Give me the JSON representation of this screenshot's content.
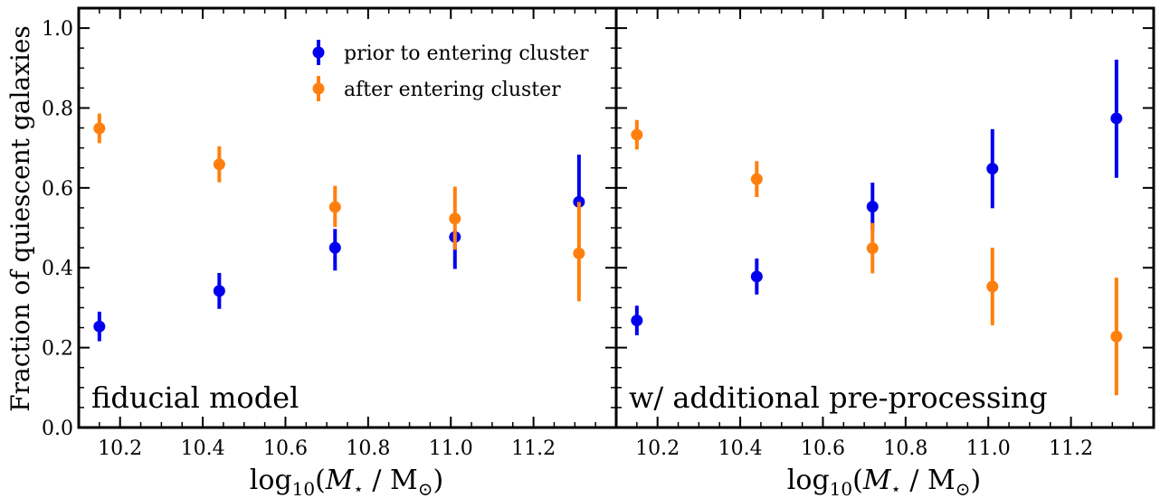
{
  "chart_data": {
    "type": "scatter",
    "ylabel": "Fraction of quiescent galaxies",
    "xlabel_prefix": "log",
    "xlabel_sub": "10",
    "xlabel_paren_open": "(",
    "xlabel_mstar": "M",
    "xlabel_star": "⋆",
    "xlabel_slash": " / M",
    "xlabel_sun": "⊙",
    "xlabel_paren_close": ")",
    "xlim": [
      10.1,
      11.4
    ],
    "ylim": [
      0.0,
      1.05
    ],
    "xticks": [
      10.2,
      10.4,
      10.6,
      10.8,
      11.0,
      11.2
    ],
    "xtick_labels": [
      "10.2",
      "10.4",
      "10.6",
      "10.8",
      "11.0",
      "11.2"
    ],
    "yticks": [
      0.0,
      0.2,
      0.4,
      0.6,
      0.8,
      1.0
    ],
    "ytick_labels": [
      "0.0",
      "0.2",
      "0.4",
      "0.6",
      "0.8",
      "1.0"
    ],
    "legend": {
      "placement": "top-center",
      "entries": [
        {
          "label": "prior to entering cluster",
          "color": "#0000ee"
        },
        {
          "label": "after entering cluster",
          "color": "#ff7f0e"
        }
      ]
    },
    "panels": [
      {
        "label": "fiducial model",
        "series": [
          {
            "name": "prior to entering cluster",
            "color": "#0000ee",
            "x": [
              10.15,
              10.44,
              10.72,
              11.01,
              11.31
            ],
            "y": [
              0.253,
              0.342,
              0.45,
              0.477,
              0.565
            ],
            "err_low": [
              0.037,
              0.045,
              0.057,
              0.08,
              0.0
            ],
            "err_high": [
              0.037,
              0.045,
              0.047,
              0.015,
              0.118
            ]
          },
          {
            "name": "after entering cluster",
            "color": "#ff7f0e",
            "x": [
              10.15,
              10.44,
              10.72,
              11.01,
              11.31
            ],
            "y": [
              0.749,
              0.659,
              0.552,
              0.523,
              0.436
            ],
            "err_low": [
              0.037,
              0.045,
              0.05,
              0.078,
              0.12
            ],
            "err_high": [
              0.037,
              0.045,
              0.053,
              0.08,
              0.129
            ]
          }
        ]
      },
      {
        "label": "w/ additional pre-processing",
        "series": [
          {
            "name": "prior to entering cluster",
            "color": "#0000ee",
            "x": [
              10.15,
              10.44,
              10.72,
              11.01,
              11.31
            ],
            "y": [
              0.268,
              0.378,
              0.553,
              0.648,
              0.774
            ],
            "err_low": [
              0.037,
              0.045,
              0.06,
              0.099,
              0.149
            ],
            "err_high": [
              0.037,
              0.045,
              0.06,
              0.099,
              0.147
            ]
          },
          {
            "name": "after entering cluster",
            "color": "#ff7f0e",
            "x": [
              10.15,
              10.44,
              10.72,
              11.01,
              11.31
            ],
            "y": [
              0.733,
              0.622,
              0.449,
              0.353,
              0.228
            ],
            "err_low": [
              0.037,
              0.045,
              0.063,
              0.097,
              0.147
            ],
            "err_high": [
              0.037,
              0.045,
              0.063,
              0.097,
              0.147
            ]
          }
        ]
      }
    ]
  }
}
